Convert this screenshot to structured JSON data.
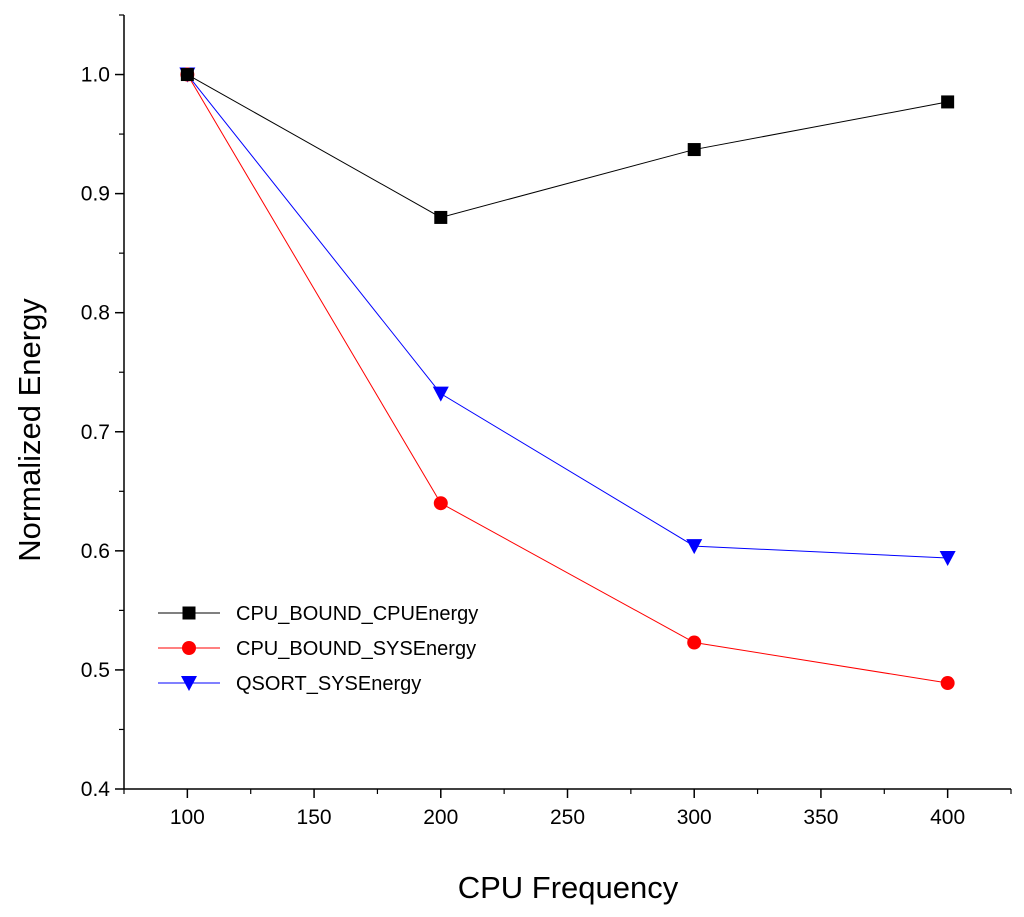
{
  "chart_data": {
    "type": "line",
    "title": "",
    "xlabel": "CPU Frequency",
    "ylabel": "Normalized Energy",
    "xlim": [
      75,
      425
    ],
    "ylim": [
      0.4,
      1.05
    ],
    "xticks": [
      100,
      150,
      200,
      250,
      300,
      350,
      400
    ],
    "xtick_labels": [
      "100",
      "150",
      "200",
      "250",
      "300",
      "350",
      "400"
    ],
    "yticks": [
      0.4,
      0.5,
      0.6,
      0.7,
      0.8,
      0.9,
      1.0
    ],
    "ytick_labels": [
      "0.4",
      "0.5",
      "0.6",
      "0.7",
      "0.8",
      "0.9",
      "1.0"
    ],
    "grid": false,
    "legend_position": "bottom-left",
    "x": [
      100,
      200,
      300,
      400
    ],
    "series": [
      {
        "name": "CPU_BOUND_CPUEnergy",
        "values": [
          1.0,
          0.88,
          0.937,
          0.977
        ],
        "color": "#000000",
        "marker": "square"
      },
      {
        "name": "CPU_BOUND_SYSEnergy",
        "values": [
          1.0,
          0.64,
          0.523,
          0.489
        ],
        "color": "#ff0000",
        "marker": "circle"
      },
      {
        "name": "QSORT_SYSEnergy",
        "values": [
          1.0,
          0.732,
          0.604,
          0.594
        ],
        "color": "#0000ff",
        "marker": "triangle-down"
      }
    ]
  }
}
